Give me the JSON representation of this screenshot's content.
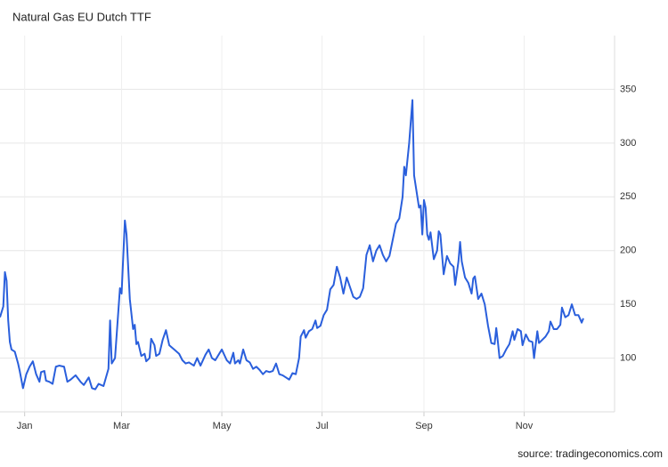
{
  "chart_data": {
    "type": "line",
    "title": "Natural Gas EU Dutch TTF",
    "source": "source: tradingeconomics.com",
    "color": "#2a5fdc",
    "grid": true,
    "xlim": [
      -15,
      359
    ],
    "ylim": [
      50,
      400
    ],
    "yticks": [
      100,
      150,
      200,
      250,
      300,
      350
    ],
    "xticks": [
      {
        "value": 0,
        "label": "Jan"
      },
      {
        "value": 59,
        "label": "Mar"
      },
      {
        "value": 120,
        "label": "May"
      },
      {
        "value": 181,
        "label": "Jul"
      },
      {
        "value": 243,
        "label": "Sep"
      },
      {
        "value": 304,
        "label": "Nov"
      }
    ],
    "x": [
      -15,
      -13,
      -12,
      -11,
      -10,
      -9,
      -8,
      -6,
      -4,
      -3,
      -1,
      1,
      3,
      5,
      7,
      9,
      10,
      12,
      13,
      15,
      17,
      19,
      21,
      24,
      26,
      28,
      31,
      34,
      36,
      39,
      41,
      43,
      45,
      48,
      51,
      52,
      53,
      55,
      58,
      59,
      61,
      62,
      64,
      66,
      67,
      68,
      69,
      71,
      73,
      74,
      76,
      77,
      79,
      80,
      82,
      84,
      86,
      88,
      91,
      94,
      96,
      98,
      100,
      103,
      105,
      107,
      110,
      112,
      114,
      116,
      118,
      120,
      123,
      125,
      127,
      128,
      130,
      131,
      133,
      135,
      137,
      139,
      141,
      143,
      145,
      147,
      149,
      151,
      153,
      155,
      157,
      159,
      161,
      163,
      165,
      167,
      168,
      170,
      171,
      173,
      175,
      177,
      178,
      180,
      182,
      184,
      186,
      188,
      190,
      192,
      194,
      196,
      198,
      200,
      202,
      204,
      206,
      208,
      210,
      212,
      214,
      216,
      218,
      220,
      222,
      224,
      226,
      228,
      230,
      231,
      232,
      234,
      236,
      237,
      239,
      240,
      241,
      242,
      243,
      244,
      245,
      246,
      247,
      249,
      251,
      252,
      253,
      255,
      257,
      259,
      261,
      262,
      264,
      265,
      266,
      268,
      270,
      272,
      273,
      274,
      276,
      278,
      280,
      282,
      284,
      286,
      287,
      288,
      289,
      291,
      293,
      295,
      297,
      298,
      300,
      302,
      303,
      305,
      307,
      309,
      310,
      312,
      313,
      315,
      317,
      319,
      320,
      322,
      324,
      326,
      327,
      329,
      331,
      333,
      335,
      337,
      339,
      340
    ],
    "values": [
      138,
      148,
      180,
      172,
      135,
      115,
      108,
      106,
      95,
      88,
      72,
      85,
      92,
      97,
      85,
      78,
      87,
      88,
      79,
      78,
      76,
      92,
      93,
      92,
      78,
      80,
      84,
      78,
      75,
      82,
      72,
      71,
      76,
      74,
      90,
      135,
      95,
      100,
      165,
      160,
      228,
      215,
      155,
      127,
      131,
      113,
      115,
      102,
      104,
      97,
      100,
      118,
      112,
      102,
      104,
      117,
      126,
      112,
      108,
      104,
      98,
      95,
      96,
      93,
      100,
      93,
      103,
      108,
      100,
      98,
      103,
      108,
      98,
      95,
      105,
      95,
      98,
      95,
      108,
      98,
      96,
      90,
      92,
      89,
      85,
      88,
      87,
      88,
      95,
      85,
      84,
      82,
      80,
      86,
      85,
      100,
      120,
      126,
      119,
      125,
      127,
      135,
      128,
      130,
      140,
      145,
      164,
      168,
      185,
      175,
      160,
      175,
      166,
      157,
      155,
      157,
      165,
      196,
      205,
      190,
      200,
      205,
      196,
      190,
      195,
      210,
      225,
      230,
      250,
      278,
      270,
      300,
      340,
      270,
      250,
      240,
      242,
      215,
      247,
      240,
      215,
      210,
      217,
      192,
      200,
      218,
      215,
      178,
      195,
      188,
      185,
      168,
      190,
      208,
      190,
      175,
      170,
      160,
      174,
      176,
      155,
      160,
      150,
      130,
      114,
      113,
      128,
      115,
      100,
      102,
      108,
      113,
      125,
      117,
      127,
      125,
      112,
      122,
      116,
      115,
      100,
      125,
      114,
      117,
      120,
      125,
      134,
      127,
      127,
      131,
      147,
      138,
      140,
      150,
      140,
      140,
      133,
      137
    ]
  }
}
